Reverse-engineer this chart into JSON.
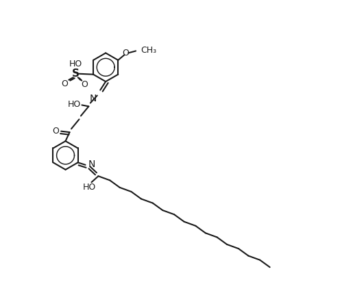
{
  "bg_color": "#ffffff",
  "line_color": "#1a1a1a",
  "line_width": 1.5,
  "font_size": 10,
  "font_size_small": 9,
  "xlim": [
    0,
    10
  ],
  "ylim": [
    0,
    8.5
  ]
}
